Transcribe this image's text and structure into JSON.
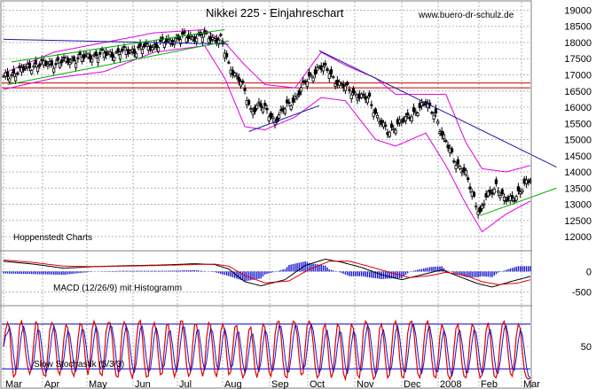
{
  "title": "Nikkei 225 - Einjahreschart",
  "source": "www.buero-dr-schulz.de",
  "credit": "Hoppenstedt Charts",
  "colors": {
    "background": "#ffffff",
    "grid": "#b4b4b4",
    "price_bars": "#000000",
    "bollinger": "#e000e0",
    "horizontal_lines": "#cc0000",
    "trend_down": "#1a1aa0",
    "trend_up": "#00b000",
    "macd_histogram": "#1414d2",
    "signal_red": "#dd0000",
    "stoch_levels": "#0000cc"
  },
  "chart_data": [
    {
      "type": "ohlc",
      "title": "Nikkei 225 - Einjahreschart",
      "x_tick_labels": [
        "Mar",
        "Apr",
        "May",
        "Jun",
        "Jul",
        "Aug",
        "Sep",
        "Oct",
        "Nov",
        "Dec",
        "2008",
        "Feb",
        "Mar"
      ],
      "y_ticks": [
        12000,
        12500,
        13000,
        13500,
        14000,
        14500,
        15000,
        15500,
        16000,
        16500,
        17000,
        17500,
        18000,
        18500,
        19000
      ],
      "ylim": [
        11700,
        19150
      ],
      "grid": true,
      "close_anchors": [
        [
          0,
          16900
        ],
        [
          15,
          17300
        ],
        [
          25,
          17350
        ],
        [
          45,
          17600
        ],
        [
          60,
          17700
        ],
        [
          75,
          17900
        ],
        [
          88,
          18150
        ],
        [
          98,
          18200
        ],
        [
          108,
          18100
        ],
        [
          112,
          17300
        ],
        [
          118,
          16800
        ],
        [
          123,
          15900
        ],
        [
          127,
          16100
        ],
        [
          135,
          15600
        ],
        [
          145,
          16300
        ],
        [
          152,
          16900
        ],
        [
          157,
          17250
        ],
        [
          162,
          17100
        ],
        [
          167,
          16700
        ],
        [
          173,
          16500
        ],
        [
          178,
          16300
        ],
        [
          182,
          16250
        ],
        [
          186,
          15700
        ],
        [
          191,
          15200
        ],
        [
          196,
          15500
        ],
        [
          200,
          15600
        ],
        [
          205,
          15900
        ],
        [
          210,
          16100
        ],
        [
          215,
          15800
        ],
        [
          218,
          15100
        ],
        [
          222,
          14700
        ],
        [
          226,
          14200
        ],
        [
          230,
          13900
        ],
        [
          233,
          13400
        ],
        [
          237,
          12700
        ],
        [
          240,
          13200
        ],
        [
          245,
          13600
        ],
        [
          249,
          13100
        ],
        [
          253,
          13200
        ],
        [
          257,
          13400
        ],
        [
          261,
          13700
        ],
        [
          265,
          13900
        ],
        [
          268,
          13800
        ],
        [
          272,
          13300
        ],
        [
          275,
          12900
        ]
      ],
      "bollinger_anchors": [
        [
          0,
          17050,
          16550
        ],
        [
          25,
          17700,
          16900
        ],
        [
          50,
          18000,
          17100
        ],
        [
          75,
          18300,
          17700
        ],
        [
          100,
          18400,
          17900
        ],
        [
          110,
          18000,
          16900
        ],
        [
          120,
          17300,
          15400
        ],
        [
          130,
          16700,
          15300
        ],
        [
          145,
          16600,
          15700
        ],
        [
          158,
          17700,
          16300
        ],
        [
          170,
          17300,
          16200
        ],
        [
          185,
          16900,
          15000
        ],
        [
          195,
          16400,
          14800
        ],
        [
          210,
          16400,
          15200
        ],
        [
          220,
          16400,
          14200
        ],
        [
          230,
          14900,
          13000
        ],
        [
          238,
          14100,
          12150
        ],
        [
          250,
          14000,
          12700
        ],
        [
          262,
          14200,
          13100
        ],
        [
          270,
          14300,
          13200
        ],
        [
          275,
          14100,
          12800
        ]
      ],
      "horizontal_lines": [
        16750,
        16600
      ],
      "trend_lines": [
        {
          "from": [
            0,
            18100
          ],
          "to": [
            112,
            17950
          ],
          "color": "trend_down"
        },
        {
          "from": [
            157,
            17750
          ],
          "to": [
            275,
            14150
          ],
          "color": "trend_down"
        },
        {
          "from": [
            122,
            15250
          ],
          "to": [
            157,
            16050
          ],
          "color": "trend_down"
        },
        {
          "from": [
            2,
            16700
          ],
          "to": [
            112,
            18050
          ],
          "color": "trend_up"
        },
        {
          "from": [
            4,
            17400
          ],
          "to": [
            110,
            18400
          ],
          "color": "trend_up"
        },
        {
          "from": [
            237,
            12650
          ],
          "to": [
            275,
            13500
          ],
          "color": "trend_up"
        }
      ]
    },
    {
      "type": "line",
      "title": "MACD (12/26/9) mit Histogramm",
      "y_ticks": [
        0,
        -500
      ],
      "ylim": [
        -750,
        420
      ],
      "macd_anchors": [
        [
          0,
          250
        ],
        [
          15,
          180
        ],
        [
          30,
          80
        ],
        [
          45,
          120
        ],
        [
          60,
          140
        ],
        [
          80,
          160
        ],
        [
          95,
          190
        ],
        [
          105,
          170
        ],
        [
          112,
          60
        ],
        [
          120,
          -250
        ],
        [
          128,
          -350
        ],
        [
          140,
          -200
        ],
        [
          150,
          150
        ],
        [
          160,
          300
        ],
        [
          168,
          230
        ],
        [
          178,
          100
        ],
        [
          188,
          -80
        ],
        [
          198,
          -200
        ],
        [
          208,
          -80
        ],
        [
          218,
          40
        ],
        [
          228,
          -150
        ],
        [
          236,
          -300
        ],
        [
          243,
          -380
        ],
        [
          252,
          -250
        ],
        [
          262,
          -120
        ],
        [
          270,
          -40
        ],
        [
          275,
          -80
        ]
      ],
      "signal_anchors": [
        [
          0,
          280
        ],
        [
          15,
          220
        ],
        [
          30,
          130
        ],
        [
          45,
          120
        ],
        [
          60,
          130
        ],
        [
          80,
          150
        ],
        [
          95,
          170
        ],
        [
          105,
          180
        ],
        [
          112,
          130
        ],
        [
          120,
          -100
        ],
        [
          130,
          -280
        ],
        [
          142,
          -230
        ],
        [
          152,
          50
        ],
        [
          162,
          250
        ],
        [
          172,
          250
        ],
        [
          182,
          120
        ],
        [
          192,
          -20
        ],
        [
          202,
          -150
        ],
        [
          212,
          -100
        ],
        [
          220,
          -20
        ],
        [
          230,
          -100
        ],
        [
          238,
          -250
        ],
        [
          246,
          -320
        ],
        [
          256,
          -280
        ],
        [
          266,
          -150
        ],
        [
          275,
          -60
        ]
      ]
    },
    {
      "type": "line",
      "title": "Slow Stochastik (5/3/3)",
      "y_ticks": [
        50
      ],
      "ylim": [
        0,
        100
      ],
      "levels": [
        80,
        20
      ],
      "k_values": [
        50,
        72,
        82,
        74,
        32,
        9,
        13,
        42,
        78,
        84,
        70,
        42,
        23,
        13,
        22,
        55,
        83,
        80,
        48,
        22,
        12,
        10,
        40,
        72,
        82,
        78,
        49,
        18,
        12,
        28,
        60,
        79,
        75,
        42,
        16,
        10,
        24,
        60,
        81,
        78,
        55,
        24,
        12,
        30,
        72,
        84,
        76,
        42,
        14,
        11,
        34,
        70,
        82,
        82,
        63,
        28,
        10,
        9,
        34,
        73,
        83,
        77,
        48,
        17,
        8,
        19,
        56,
        81,
        85,
        65,
        28,
        9,
        10,
        38,
        74,
        82,
        70,
        36,
        12,
        14,
        49,
        78,
        80,
        55,
        22,
        9,
        18,
        60,
        84,
        84,
        60,
        24,
        10,
        15,
        50,
        79,
        80,
        58,
        22,
        10,
        22,
        62,
        82,
        78,
        48,
        16,
        9,
        32,
        70,
        80,
        72,
        36,
        12,
        16,
        48,
        76,
        78,
        54,
        20,
        8,
        14,
        44,
        72,
        76,
        52,
        20,
        8,
        20,
        60,
        80,
        76,
        44,
        16,
        10,
        28,
        66,
        82,
        84,
        64,
        30,
        10,
        8,
        30,
        68,
        84,
        82,
        66,
        34,
        12,
        14,
        48,
        78,
        84,
        78,
        54,
        22,
        8,
        12,
        42,
        74,
        80,
        60,
        24,
        8,
        16,
        54,
        80,
        76,
        48,
        14,
        6,
        20,
        58,
        80,
        74,
        42,
        12,
        8,
        34,
        72,
        84,
        80,
        54,
        20,
        6,
        10,
        40,
        74,
        80,
        62,
        28,
        8,
        12,
        48,
        78,
        84,
        70,
        34,
        10,
        8,
        30,
        68,
        82,
        84,
        72,
        40,
        14,
        8,
        20,
        54,
        80,
        84,
        66,
        32,
        10,
        8,
        30,
        64,
        80,
        72,
        40,
        12,
        6,
        14,
        46,
        74,
        80,
        60,
        26,
        10,
        8,
        28,
        62,
        80,
        76,
        50,
        20,
        8,
        12,
        40,
        72,
        82,
        66,
        32,
        10,
        8,
        24,
        58,
        80,
        84,
        70,
        38,
        14,
        10,
        30,
        64,
        80,
        74,
        44,
        18,
        8,
        6,
        8
      ]
    }
  ]
}
